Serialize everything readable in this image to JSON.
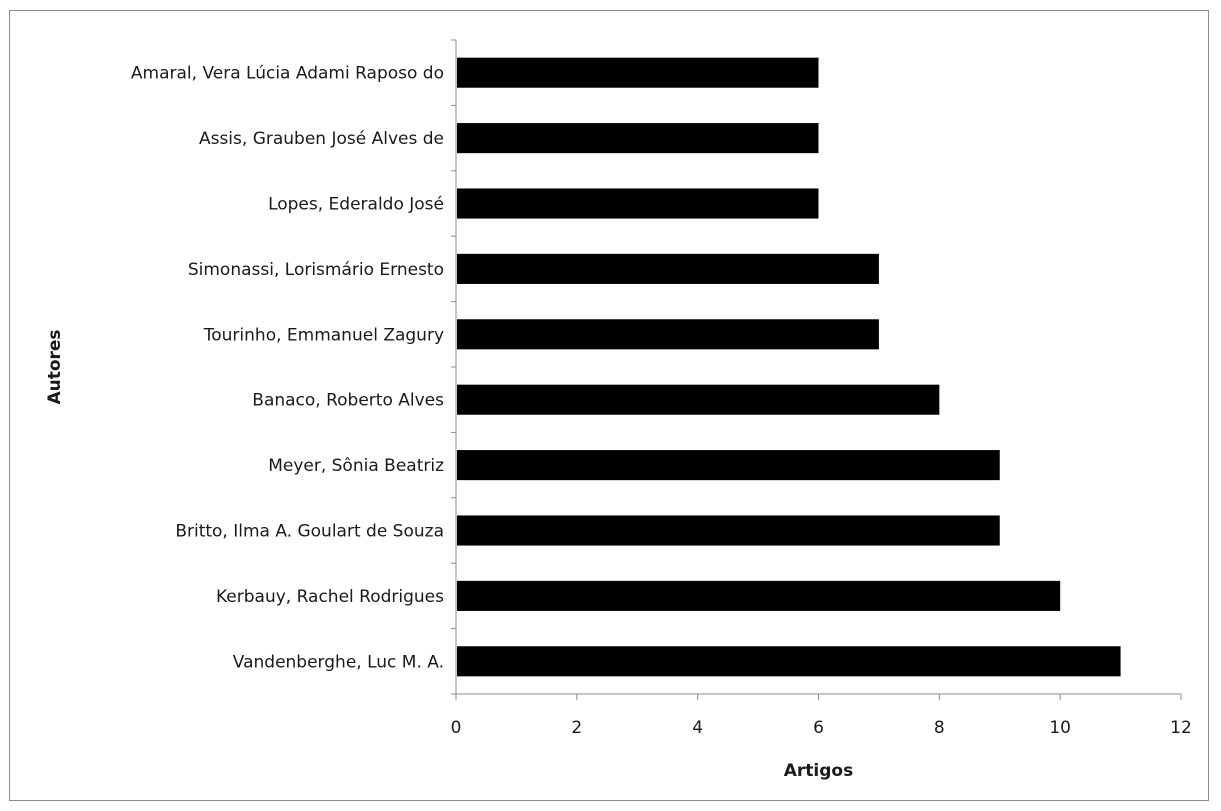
{
  "chart_data": {
    "type": "bar",
    "orientation": "horizontal",
    "categories": [
      "Vandenberghe, Luc M. A.",
      "Kerbauy, Rachel Rodrigues",
      "Britto, Ilma A. Goulart de Souza",
      "Meyer, Sônia Beatriz",
      "Banaco, Roberto Alves",
      "Tourinho, Emmanuel Zagury",
      "Simonassi, Lorismário Ernesto",
      "Lopes, Ederaldo José",
      "Assis, Grauben José Alves de",
      "Amaral, Vera Lúcia Adami Raposo do"
    ],
    "values": [
      11,
      10,
      9,
      9,
      8,
      7,
      7,
      6,
      6,
      6
    ],
    "xlabel": "Artigos",
    "ylabel": "Autores",
    "xlim": [
      0,
      12
    ],
    "xticks": [
      "0",
      "2",
      "4",
      "6",
      "8",
      "10",
      "12"
    ],
    "grid": false,
    "bar_color": "#000000"
  }
}
